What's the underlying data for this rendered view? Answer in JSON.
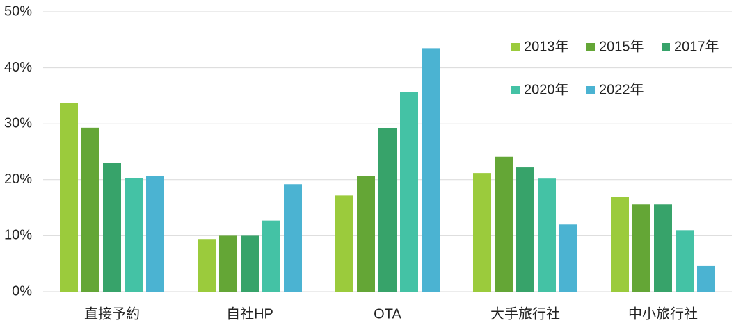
{
  "chart_data": {
    "type": "bar",
    "categories": [
      "直接予約",
      "自社HP",
      "OTA",
      "大手旅行社",
      "中小旅行社"
    ],
    "series": [
      {
        "name": "2013年",
        "color": "#9bcb3c",
        "values": [
          33.7,
          9.4,
          17.2,
          21.2,
          16.9
        ]
      },
      {
        "name": "2015年",
        "color": "#64a636",
        "values": [
          29.3,
          10.0,
          20.7,
          24.1,
          15.6
        ]
      },
      {
        "name": "2017年",
        "color": "#37a36a",
        "values": [
          23.0,
          10.0,
          29.2,
          22.2,
          15.6
        ]
      },
      {
        "name": "2020年",
        "color": "#44c2a5",
        "values": [
          20.3,
          12.7,
          35.7,
          20.2,
          11.0
        ]
      },
      {
        "name": "2022年",
        "color": "#4bb3d2",
        "values": [
          20.6,
          19.2,
          43.5,
          12.0,
          4.6
        ]
      }
    ],
    "ylim": [
      0,
      50
    ],
    "yticks": [
      {
        "value": 0,
        "label": "0%"
      },
      {
        "value": 10,
        "label": "10%"
      },
      {
        "value": 20,
        "label": "20%"
      },
      {
        "value": 30,
        "label": "30%"
      },
      {
        "value": 40,
        "label": "40%"
      },
      {
        "value": 50,
        "label": "50%"
      }
    ],
    "grid": true,
    "legend": "upper right"
  }
}
